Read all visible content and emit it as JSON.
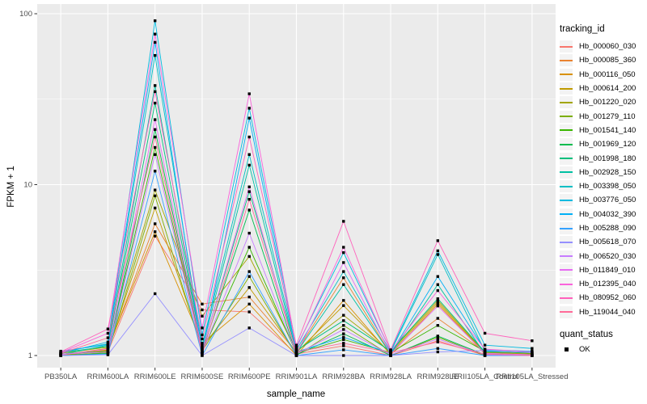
{
  "chart_data": {
    "type": "line",
    "title": "",
    "xlabel": "sample_name",
    "ylabel": "FPKM + 1",
    "y_scale": "log10",
    "y_ticks": [
      1,
      10,
      100
    ],
    "y_minor_ticks": [
      3.162,
      31.62
    ],
    "ylim": [
      0.9,
      110
    ],
    "grid": "white major and minor gridlines on gray panel",
    "legend_position": "right",
    "point_shape": "square",
    "point_color": "#000000",
    "panel_bg": "#EBEBEB",
    "grid_color": "#FFFFFF",
    "tick_label_color": "#4D4D4D",
    "x_categories": [
      "PB350LA",
      "RRIM600LA",
      "RRIM600LE",
      "RRIM600SE",
      "RRIM600PE",
      "RRIM901LA",
      "RRIM928BA",
      "RRIM928LA",
      "RRIM928LE",
      "RRII105LA_Control",
      "RRII105LA_Stressed"
    ],
    "series": [
      {
        "name": "Hb_000060_030",
        "color": "#F8766D",
        "values": [
          1.02,
          1.05,
          5.0,
          1.85,
          1.8,
          1.02,
          1.14,
          1.0,
          1.22,
          1.0,
          1.0
        ]
      },
      {
        "name": "Hb_000085_360",
        "color": "#EA8331",
        "values": [
          1.0,
          1.08,
          5.9,
          2.0,
          2.2,
          1.05,
          2.85,
          1.02,
          1.65,
          1.05,
          1.02
        ]
      },
      {
        "name": "Hb_000116_050",
        "color": "#D89000",
        "values": [
          1.01,
          1.1,
          5.3,
          1.18,
          2.0,
          1.0,
          2.1,
          1.01,
          2.0,
          1.02,
          1.0
        ]
      },
      {
        "name": "Hb_000614_200",
        "color": "#C09B00",
        "values": [
          1.0,
          1.07,
          7.3,
          1.12,
          2.5,
          1.04,
          1.96,
          1.03,
          2.05,
          1.03,
          1.01
        ]
      },
      {
        "name": "Hb_001220_020",
        "color": "#A3A500",
        "values": [
          1.03,
          1.12,
          9.3,
          1.7,
          3.8,
          1.06,
          1.72,
          1.05,
          2.1,
          1.04,
          1.02
        ]
      },
      {
        "name": "Hb_001279_110",
        "color": "#7CAE00",
        "values": [
          1.0,
          1.04,
          8.6,
          1.06,
          2.9,
          1.0,
          1.5,
          1.0,
          1.28,
          1.0,
          1.0
        ]
      },
      {
        "name": "Hb_001541_140",
        "color": "#39B600",
        "values": [
          1.02,
          1.06,
          16.5,
          1.05,
          4.3,
          1.03,
          1.24,
          1.04,
          1.5,
          1.06,
          1.03
        ]
      },
      {
        "name": "Hb_001969_120",
        "color": "#00BB4E",
        "values": [
          1.0,
          1.03,
          21,
          1.05,
          7.1,
          1.01,
          1.34,
          1.0,
          1.3,
          1.01,
          1.0
        ]
      },
      {
        "name": "Hb_001998_180",
        "color": "#00BF7D",
        "values": [
          1.04,
          1.13,
          30,
          1.08,
          9.1,
          1.07,
          1.6,
          1.06,
          2.15,
          1.05,
          1.04
        ]
      },
      {
        "name": "Hb_002928_150",
        "color": "#00C1A3",
        "values": [
          1.01,
          1.15,
          38,
          1.1,
          13,
          1.04,
          2.6,
          1.02,
          2.6,
          1.02,
          1.01
        ]
      },
      {
        "name": "Hb_003398_050",
        "color": "#00BFC4",
        "values": [
          1.05,
          1.17,
          57,
          1.15,
          15,
          1.08,
          3.1,
          1.05,
          3.9,
          1.06,
          1.05
        ]
      },
      {
        "name": "Hb_003776_050",
        "color": "#00BAE0",
        "values": [
          1.03,
          1.2,
          91,
          1.32,
          28,
          1.12,
          4.0,
          1.07,
          4.1,
          1.15,
          1.1
        ]
      },
      {
        "name": "Hb_004032_390",
        "color": "#00B0F6",
        "values": [
          1.06,
          1.16,
          68,
          1.04,
          24.5,
          1.05,
          1.28,
          1.03,
          2.9,
          1.08,
          1.06
        ]
      },
      {
        "name": "Hb_005288_090",
        "color": "#35A2FF",
        "values": [
          1.0,
          1.02,
          12,
          1.0,
          3.1,
          1.0,
          1.08,
          1.0,
          1.1,
          1.0,
          1.0
        ]
      },
      {
        "name": "Hb_005618_070",
        "color": "#9590FF",
        "values": [
          1.0,
          1.01,
          2.3,
          1.0,
          1.45,
          1.0,
          1.0,
          1.0,
          1.05,
          1.07,
          1.04
        ]
      },
      {
        "name": "Hb_006520_030",
        "color": "#C77CFF",
        "values": [
          1.02,
          1.05,
          15,
          1.03,
          5.2,
          1.02,
          1.42,
          1.01,
          1.25,
          1.01,
          1.0
        ]
      },
      {
        "name": "Hb_011849_010",
        "color": "#E76BF3",
        "values": [
          1.01,
          1.09,
          24,
          1.07,
          9.7,
          1.03,
          3.5,
          1.02,
          1.95,
          1.03,
          1.01
        ]
      },
      {
        "name": "Hb_012395_040",
        "color": "#FA62DB",
        "values": [
          1.04,
          1.35,
          76,
          1.45,
          34,
          1.1,
          4.3,
          1.06,
          2.4,
          1.09,
          1.05
        ]
      },
      {
        "name": "Hb_080952_060",
        "color": "#FF62BC",
        "values": [
          1.05,
          1.43,
          35,
          1.25,
          19,
          1.15,
          6.1,
          1.08,
          4.7,
          1.35,
          1.22
        ]
      },
      {
        "name": "Hb_119044_040",
        "color": "#FF6A98",
        "values": [
          1.03,
          1.27,
          19,
          1.02,
          8.2,
          1.05,
          1.18,
          1.04,
          1.2,
          1.02,
          1.0
        ]
      }
    ]
  },
  "legend": {
    "tracking_title": "tracking_id",
    "quant_title": "quant_status",
    "quant_items": [
      "OK"
    ]
  }
}
